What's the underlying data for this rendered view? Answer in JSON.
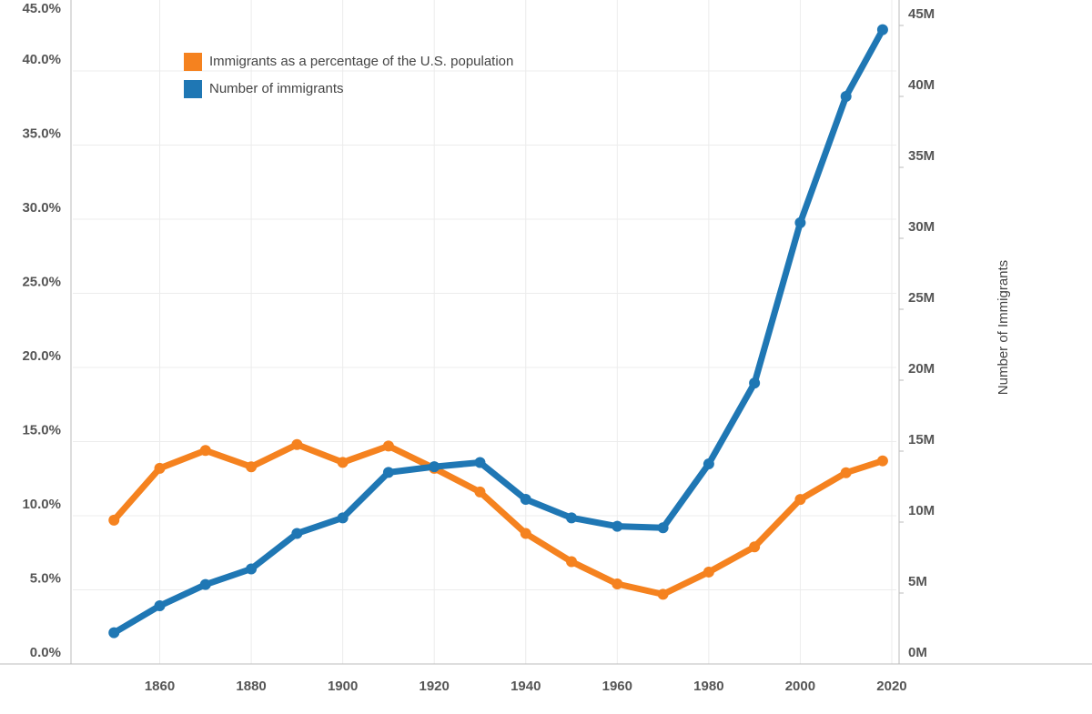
{
  "chart_data": {
    "type": "line",
    "y_label": "Number of Immigrants",
    "x": [
      1850,
      1860,
      1870,
      1880,
      1890,
      1900,
      1910,
      1920,
      1930,
      1940,
      1950,
      1960,
      1970,
      1980,
      1990,
      2000,
      2010,
      2018
    ],
    "series": [
      {
        "name": "Immigrants as a percentage of the U.S. population",
        "color": "#f5821f",
        "values": [
          9.7,
          13.2,
          14.4,
          13.3,
          14.8,
          13.6,
          14.7,
          13.2,
          11.6,
          8.8,
          6.9,
          5.4,
          4.7,
          6.2,
          7.9,
          11.1,
          12.9,
          13.7
        ]
      },
      {
        "name": "Number of immigrants",
        "color": "#1f77b4",
        "axis": "y2",
        "values": [
          2200000,
          4100000,
          5600000,
          6700000,
          9200000,
          10300000,
          13500000,
          13900000,
          14200000,
          11600000,
          10300000,
          9700000,
          9600000,
          14100000,
          19800000,
          31100000,
          40000000,
          44700000
        ]
      }
    ],
    "xlim": [
      1841,
      2021
    ],
    "xticks": [
      1860,
      1880,
      1900,
      1920,
      1940,
      1960,
      1980,
      2000,
      2020
    ],
    "ylim": [
      0,
      45
    ],
    "yticks": [
      {
        "value": 0,
        "label": "0.0%"
      },
      {
        "value": 5,
        "label": "5.0%"
      },
      {
        "value": 10,
        "label": "10.0%"
      },
      {
        "value": 15,
        "label": "15.0%"
      },
      {
        "value": 20,
        "label": "20.0%"
      },
      {
        "value": 25,
        "label": "25.0%"
      },
      {
        "value": 30,
        "label": "30.0%"
      },
      {
        "value": 35,
        "label": "35.0%"
      },
      {
        "value": 40,
        "label": "40.0%"
      },
      {
        "value": 45,
        "label": "45.0%"
      }
    ],
    "y2lim": [
      0,
      45000000
    ],
    "y2ticks": [
      {
        "value": 0,
        "label": "0M"
      },
      {
        "value": 5000000,
        "label": "5M"
      },
      {
        "value": 10000000,
        "label": "10M"
      },
      {
        "value": 15000000,
        "label": "15M"
      },
      {
        "value": 20000000,
        "label": "20M"
      },
      {
        "value": 25000000,
        "label": "25M"
      },
      {
        "value": 30000000,
        "label": "30M"
      },
      {
        "value": 35000000,
        "label": "35M"
      },
      {
        "value": 40000000,
        "label": "40M"
      },
      {
        "value": 45000000,
        "label": "45M"
      }
    ],
    "grid": true
  }
}
